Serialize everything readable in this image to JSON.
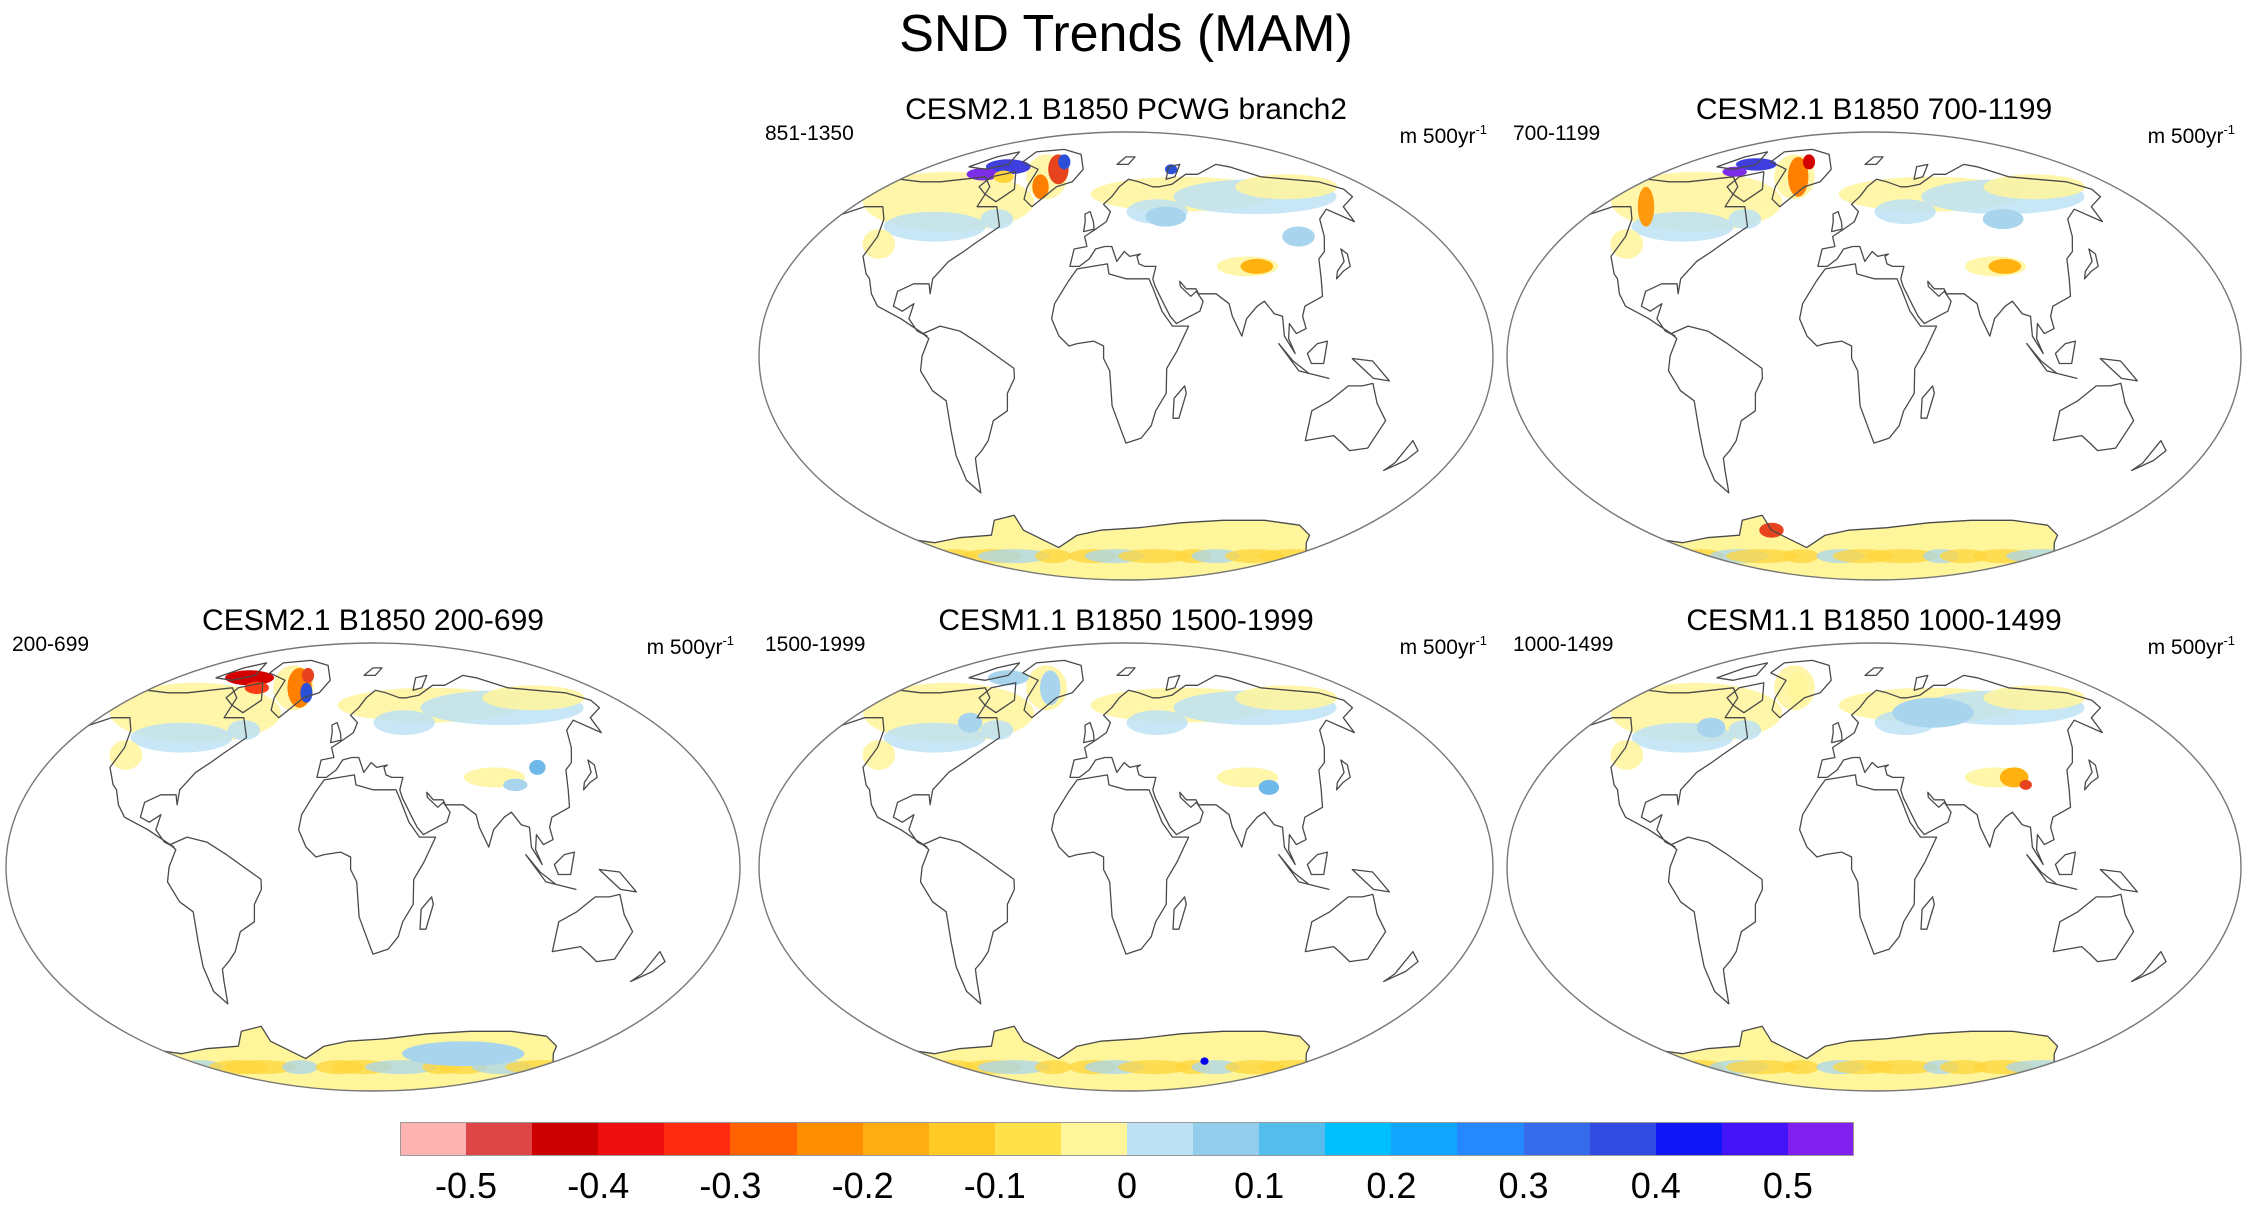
{
  "title": "SND Trends (MAM)",
  "units": {
    "base": "m 500yr",
    "exponent": "-1"
  },
  "panels": [
    {
      "title": "CESM2.1 B1850 PCWG branch2",
      "period": "851-1350",
      "anomalies": [
        {
          "lon": -40,
          "lat": 75,
          "rx": 5,
          "ry": 6,
          "color": "#e8431f"
        },
        {
          "lon": -35,
          "lat": 78,
          "rx": 3,
          "ry": 3,
          "color": "#2b4fd6"
        },
        {
          "lon": -85,
          "lat": 76,
          "rx": 11,
          "ry": 3,
          "color": "#3f3fe0"
        },
        {
          "lon": -100,
          "lat": 73,
          "rx": 8,
          "ry": 2.5,
          "color": "#7b2de8"
        },
        {
          "lon": -44,
          "lat": 68,
          "rx": 4,
          "ry": 5,
          "color": "#ff7f00"
        },
        {
          "lon": -80,
          "lat": 72,
          "rx": 5,
          "ry": 2.5,
          "color": "#ffd43b"
        },
        {
          "lon": 60,
          "lat": 75,
          "rx": 3,
          "ry": 2,
          "color": "#2b4fd6"
        },
        {
          "lon": 90,
          "lat": 36,
          "rx": 8,
          "ry": 3,
          "color": "#ffb20f"
        },
        {
          "lon": 120,
          "lat": 48,
          "rx": 8,
          "ry": 4,
          "color": "#a9d4ee"
        },
        {
          "lon": 45,
          "lat": 56,
          "rx": 10,
          "ry": 4,
          "color": "#a9d4ee"
        }
      ]
    },
    {
      "title": "CESM2.1 B1850 700-1199",
      "period": "700-1199",
      "anomalies": [
        {
          "lon": -42,
          "lat": 72,
          "rx": 5,
          "ry": 8,
          "color": "#ff7f00"
        },
        {
          "lon": -38,
          "lat": 78,
          "rx": 3,
          "ry": 3,
          "color": "#d40000"
        },
        {
          "lon": -85,
          "lat": 77,
          "rx": 10,
          "ry": 2.5,
          "color": "#3f3fe0"
        },
        {
          "lon": -130,
          "lat": 60,
          "rx": 4,
          "ry": 8,
          "color": "#ff9a0f"
        },
        {
          "lon": -100,
          "lat": 74,
          "rx": 6,
          "ry": 2,
          "color": "#7b2de8"
        },
        {
          "lon": 90,
          "lat": 36,
          "rx": 8,
          "ry": 3,
          "color": "#ffb20f"
        },
        {
          "lon": -60,
          "lat": -70,
          "rx": 6,
          "ry": 3,
          "color": "#e8431f"
        },
        {
          "lon": 100,
          "lat": 55,
          "rx": 10,
          "ry": 4,
          "color": "#a9d4ee"
        }
      ]
    },
    {
      "title": "CESM2.1 B1850 200-699",
      "period": "200-699",
      "anomalies": [
        {
          "lon": -40,
          "lat": 72,
          "rx": 6,
          "ry": 8,
          "color": "#ff7f00"
        },
        {
          "lon": -38,
          "lat": 77,
          "rx": 3,
          "ry": 3,
          "color": "#e8431f"
        },
        {
          "lon": -32,
          "lat": 70,
          "rx": 3,
          "ry": 4,
          "color": "#2b4fd6"
        },
        {
          "lon": -90,
          "lat": 76,
          "rx": 12,
          "ry": 3,
          "color": "#d40000"
        },
        {
          "lon": -75,
          "lat": 72,
          "rx": 6,
          "ry": 2.5,
          "color": "#ff3c14"
        },
        {
          "lon": 95,
          "lat": 33,
          "rx": 6,
          "ry": 2.5,
          "color": "#a9d4ee"
        },
        {
          "lon": 110,
          "lat": 40,
          "rx": 4,
          "ry": 3,
          "color": "#6fb8ea"
        },
        {
          "lon": 100,
          "lat": -75,
          "rx": 30,
          "ry": 5,
          "color": "#a9d4ee"
        }
      ]
    },
    {
      "title": "CESM1.1 B1850 1500-1999",
      "period": "1500-1999",
      "anomalies": [
        {
          "lon": -42,
          "lat": 72,
          "rx": 5,
          "ry": 7,
          "color": "#a9d4ee"
        },
        {
          "lon": -80,
          "lat": 58,
          "rx": 6,
          "ry": 4,
          "color": "#a9d4ee"
        },
        {
          "lon": -85,
          "lat": 76,
          "rx": 10,
          "ry": 3,
          "color": "#a9d4ee"
        },
        {
          "lon": 95,
          "lat": 32,
          "rx": 5,
          "ry": 3,
          "color": "#6fb8ea"
        },
        {
          "lon": 90,
          "lat": -78,
          "rx": 2,
          "ry": 1.5,
          "color": "#0000ee"
        }
      ]
    },
    {
      "title": "CESM1.1 B1850 1000-1499",
      "period": "1000-1499",
      "anomalies": [
        {
          "lon": 60,
          "lat": 62,
          "rx": 20,
          "ry": 6,
          "color": "#a9d4ee"
        },
        {
          "lon": 95,
          "lat": 36,
          "rx": 7,
          "ry": 4,
          "color": "#ffb20f"
        },
        {
          "lon": 100,
          "lat": 33,
          "rx": 3,
          "ry": 2,
          "color": "#e8431f"
        },
        {
          "lon": -82,
          "lat": 56,
          "rx": 7,
          "ry": 4,
          "color": "#a9d4ee"
        },
        {
          "lon": -42,
          "lat": 72,
          "rx": 5,
          "ry": 7,
          "color": "#fff59b"
        }
      ]
    }
  ],
  "colorbar": {
    "colors": [
      "#ffb3b3",
      "#de4545",
      "#cc0000",
      "#ef0f0f",
      "#ff2a10",
      "#ff6200",
      "#ff8d00",
      "#ffad10",
      "#ffc926",
      "#ffe24a",
      "#fff59b",
      "#bde2f4",
      "#92cdec",
      "#55bdee",
      "#00bfff",
      "#10a6ff",
      "#2688ff",
      "#356bea",
      "#2f4be0",
      "#0f17f6",
      "#4314f8",
      "#8020ef"
    ],
    "labels": [
      "-0.5",
      "-0.4",
      "-0.3",
      "-0.2",
      "-0.1",
      "0",
      "0.1",
      "0.2",
      "0.3",
      "0.4",
      "0.5"
    ],
    "label_values": [
      -0.5,
      -0.4,
      -0.3,
      -0.2,
      -0.1,
      0,
      0.1,
      0.2,
      0.3,
      0.4,
      0.5
    ],
    "min": -0.55,
    "max": 0.55
  }
}
